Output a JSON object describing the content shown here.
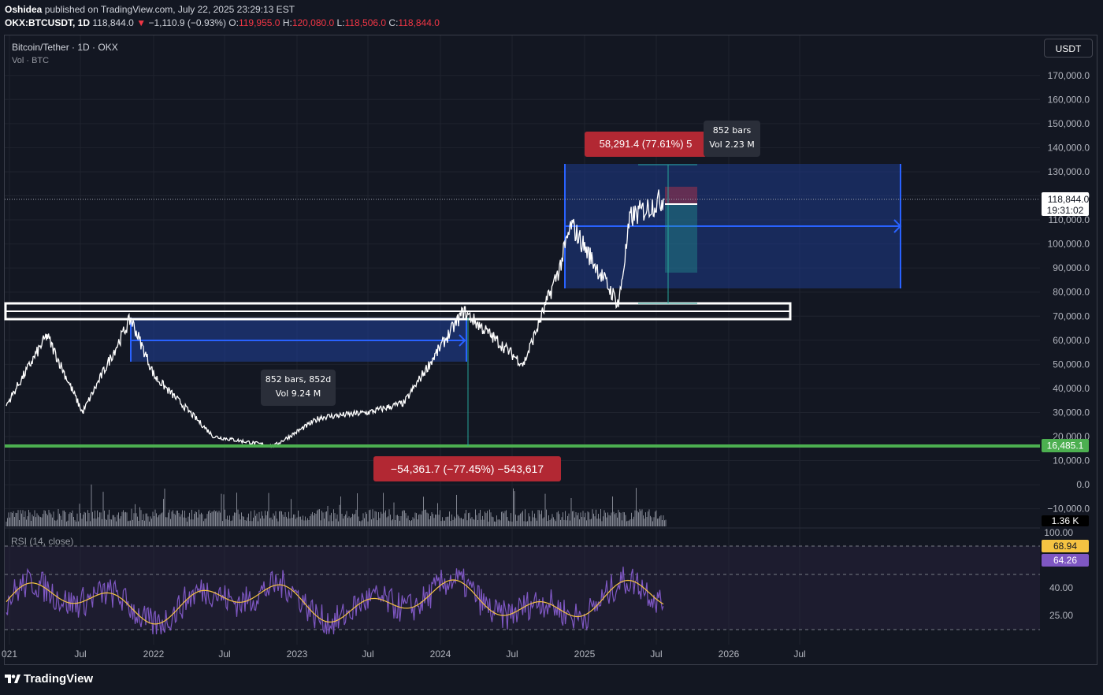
{
  "header": {
    "author": "Oshidea",
    "published": "published on TradingView.com, July 22, 2025 23:29:13 EST",
    "symbol": "OKX:BTCUSDT, 1D",
    "last": "118,844.0",
    "arrow": "▼",
    "change": "−1,110.9 (−0.93%)",
    "o_label": "O:",
    "o_value": "119,955.0",
    "h_label": "H:",
    "h_value": "120,080.0",
    "l_label": "L:",
    "l_value": "118,506.0",
    "c_label": "C:",
    "c_value": "118,844.0"
  },
  "legend": {
    "title": "Bitcoin/Tether · 1D · OKX",
    "volume": "Vol · BTC",
    "rsi": "RSI (14, close)"
  },
  "currency_button": "USDT",
  "footer": {
    "brand": "TradingView",
    "logo_icon": "tradingview-logo-icon"
  },
  "colors": {
    "background": "#131722",
    "price_line": "#ffffff",
    "box_fill": "#1e3a8a",
    "measure_blue": "#2962ff",
    "support_green": "#4caf50",
    "negative_label": "#b22833",
    "rsi_line": "#7e57c2",
    "rsi_ma": "#f5c342",
    "long_target": "#f23645",
    "long_stop": "#26a69a"
  },
  "annotations": {
    "drop_measure": "−54,361.7 (−77.45%) −543,617",
    "rise_measure": "58,291.4 (77.61%) 5",
    "range1_bars": "852 bars, 852d",
    "range1_vol": "Vol 9.24 M",
    "range2_bars": "852 bars",
    "range2_vol": "Vol 2.23 M"
  },
  "price_scale": {
    "labels": [
      "170,000.0",
      "160,000.0",
      "150,000.0",
      "140,000.0",
      "130,000.0",
      "120,000.0",
      "110,000.0",
      "100,000.0",
      "90,000.0",
      "80,000.0",
      "70,000.0",
      "60,000.0",
      "50,000.0",
      "40,000.0",
      "30,000.0",
      "20,000.0",
      "10,000.0",
      "0.0",
      "−10,000.0"
    ],
    "last_price": "118,844.0",
    "countdown": "19:31:02",
    "support_label": "16,485.1",
    "volume_label": "1.36 K"
  },
  "rsi_scale": {
    "labels": [
      "100.00",
      "40.00",
      "25.00"
    ],
    "rsi_value": "68.94",
    "ma_value": "64.26"
  },
  "time_axis": [
    "021",
    "Jul",
    "2022",
    "Jul",
    "2023",
    "Jul",
    "2024",
    "Jul",
    "2025",
    "Jul",
    "2026",
    "Jul"
  ],
  "chart_data": {
    "type": "line",
    "title": "Bitcoin/Tether · 1D · OKX",
    "x": [
      "2021-01",
      "2021-04",
      "2021-07",
      "2021-11",
      "2022-01",
      "2022-06",
      "2022-11",
      "2023-03",
      "2023-07",
      "2023-10",
      "2024-03",
      "2024-08",
      "2024-11",
      "2024-12",
      "2025-04",
      "2025-05",
      "2025-07"
    ],
    "y": [
      33000,
      62000,
      30000,
      69000,
      45000,
      20000,
      16000,
      28000,
      30000,
      34000,
      72000,
      50000,
      90000,
      108000,
      75000,
      111000,
      118844
    ],
    "ylim": [
      -15000,
      180000
    ],
    "support_level": 16485.1,
    "resistance_zone": [
      69500,
      75000
    ],
    "last": 118844.0,
    "volume_last": "1.36 K",
    "rsi": {
      "length": 14,
      "source": "close",
      "value": 68.94,
      "ma": 64.26,
      "levels": [
        100,
        70,
        30
      ]
    }
  }
}
